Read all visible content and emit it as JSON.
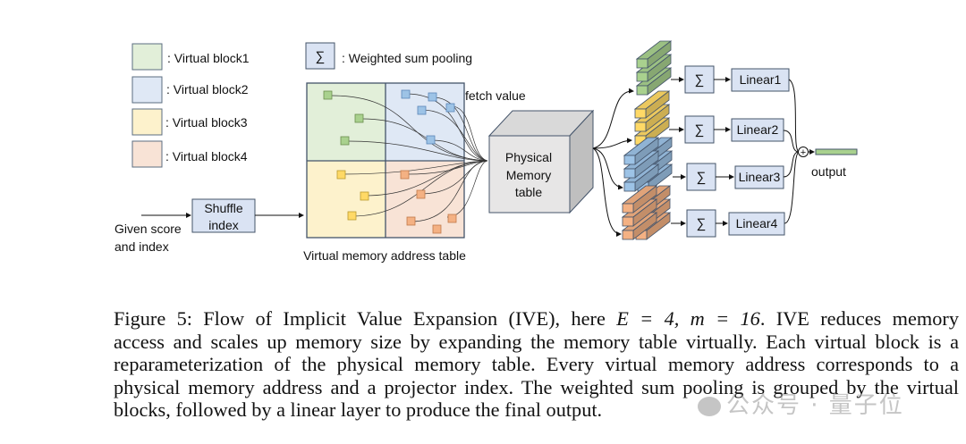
{
  "figure": {
    "legend": [
      {
        "label": ": Virtual block1",
        "fill": "#e2efd9",
        "stroke": "#5b6d80"
      },
      {
        "label": ": Virtual block2",
        "fill": "#dfe8f5",
        "stroke": "#5b6d80"
      },
      {
        "label": ": Virtual block3",
        "fill": "#fdf2cc",
        "stroke": "#5b6d80"
      },
      {
        "label": ": Virtual block4",
        "fill": "#f8e3d6",
        "stroke": "#5b6d80"
      }
    ],
    "sigma_symbol": "∑",
    "sigma_legend_label": ": Weighted sum pooling",
    "fetch_value_label": "fetch value",
    "shuffle_label_line1": "Shuffle",
    "shuffle_label_line2": "index",
    "input_label_line1": "Given score",
    "input_label_line2": "and index",
    "address_table_label": "Virtual memory address table",
    "physical_line1": "Physical",
    "physical_line2": "Memory",
    "physical_line3": "table",
    "linear_labels": [
      "Linear1",
      "Linear2",
      "Linear3",
      "Linear4"
    ],
    "plus_symbol": "+",
    "output_label": "output",
    "colors": {
      "green": "#a9d18e",
      "blue": "#9dc3e6",
      "yellow": "#ffd966",
      "orange": "#f4b183",
      "box_fill": "#dae3f3",
      "box_stroke": "#44546a",
      "cube_front": "#e7e6e6"
    }
  },
  "caption": {
    "line1_prefix": "Figure 5: Flow of Implicit Value Expansion (IVE), here ",
    "line1_math": "E = 4, m = 16",
    "line1_suffix": ". IVE reduces memory",
    "line2": "access and scales up memory size by expanding the memory table virtually. Each virtual block is a",
    "line3": "reparameterization of the physical memory table. Every virtual memory address corresponds to a",
    "line4": "physical memory address and a projector index. The weighted sum pooling is grouped by the virtual",
    "line5": "blocks, followed by a linear layer to produce the final output."
  },
  "watermark": "公众号 · 量子位"
}
